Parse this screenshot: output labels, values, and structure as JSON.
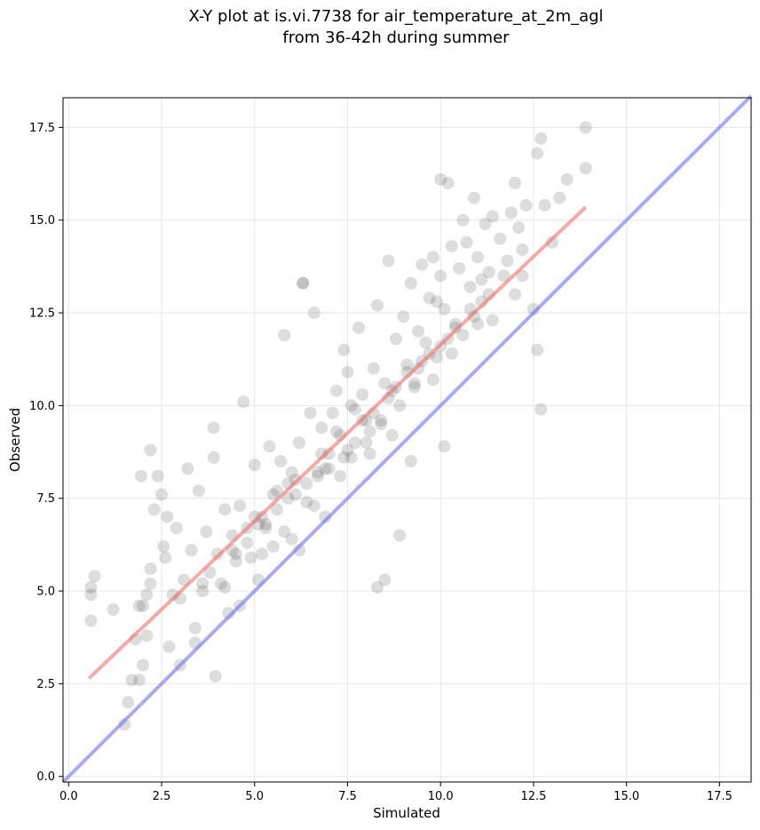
{
  "chart_data": {
    "type": "scatter",
    "title_line1": "X-Y plot at is.vi.7738 for air_temperature_at_2m_agl",
    "title_line2": "from 36-42h during summer",
    "xlabel": "Simulated",
    "ylabel": "Observed",
    "xlim": [
      -0.15,
      18.35
    ],
    "ylim": [
      -0.15,
      18.3
    ],
    "xticks": [
      "0.0",
      "2.5",
      "5.0",
      "7.5",
      "10.0",
      "12.5",
      "15.0",
      "17.5"
    ],
    "yticks": [
      "0.0",
      "2.5",
      "5.0",
      "7.5",
      "10.0",
      "12.5",
      "15.0",
      "17.5"
    ],
    "grid": true,
    "colors": {
      "points": "#555555",
      "fit_line": "#ef6f6f",
      "identity_line": "#6f6fef"
    },
    "fit_line": {
      "x": [
        0.55,
        13.9
      ],
      "y": [
        2.65,
        15.35
      ]
    },
    "identity_line": {
      "x": [
        -0.15,
        18.35
      ],
      "y": [
        -0.15,
        18.35
      ]
    },
    "points": {
      "x": [
        0.6,
        0.6,
        0.7,
        0.6,
        1.2,
        1.5,
        1.6,
        1.7,
        1.8,
        1.9,
        2.0,
        2.0,
        2.1,
        1.95,
        2.1,
        2.2,
        2.3,
        2.4,
        2.5,
        2.2,
        2.55,
        2.6,
        2.65,
        2.8,
        2.9,
        3.0,
        3.1,
        3.2,
        3.3,
        3.4,
        3.5,
        3.6,
        3.7,
        3.8,
        3.9,
        3.95,
        4.0,
        4.1,
        4.2,
        4.3,
        4.4,
        4.5,
        4.6,
        4.7,
        4.8,
        4.9,
        5.0,
        5.1,
        5.2,
        5.3,
        5.4,
        5.5,
        5.6,
        5.7,
        5.8,
        5.9,
        6.0,
        6.1,
        6.2,
        6.3,
        6.4,
        6.5,
        6.6,
        6.7,
        6.8,
        6.9,
        7.0,
        7.1,
        7.2,
        7.3,
        7.4,
        7.5,
        7.6,
        7.7,
        7.8,
        7.9,
        8.0,
        8.1,
        8.2,
        8.3,
        8.4,
        8.5,
        8.6,
        8.7,
        8.8,
        8.9,
        9.0,
        9.1,
        9.2,
        9.3,
        9.4,
        9.5,
        9.6,
        9.7,
        9.8,
        9.9,
        10.0,
        10.1,
        10.2,
        10.3,
        10.4,
        10.5,
        10.6,
        10.7,
        10.8,
        10.9,
        11.0,
        11.1,
        11.2,
        11.3,
        11.4,
        11.6,
        11.8,
        11.9,
        12.0,
        12.1,
        12.2,
        12.3,
        12.5,
        12.6,
        12.7,
        12.8,
        13.0,
        13.2,
        13.4,
        13.9,
        13.9,
        12.7,
        12.6,
        10.1,
        10.0,
        6.3,
        6.2,
        5.8,
        4.6,
        3.9,
        2.2,
        1.9,
        8.3,
        8.5,
        8.9,
        7.2,
        5.5,
        6.8,
        7.6,
        8.0,
        9.2,
        9.8,
        10.6,
        11.4,
        12.0,
        3.4,
        3.0,
        2.7,
        4.2,
        4.8,
        5.2,
        6.0,
        6.6,
        7.3,
        7.9,
        8.7,
        9.4,
        9.9,
        10.3,
        11.0,
        11.7,
        12.2,
        5.0,
        5.6,
        6.4,
        7.0,
        7.7,
        8.2,
        8.8,
        9.5,
        10.2,
        10.8,
        11.3,
        4.5,
        5.3,
        6.1,
        6.9,
        7.5,
        8.1,
        8.6,
        9.1,
        9.7,
        10.4,
        11.1,
        3.6,
        4.4,
        5.1,
        5.9,
        6.7,
        7.4,
        8.4,
        9.3,
        10.0,
        10.9
      ],
      "y": [
        4.2,
        5.1,
        5.4,
        4.9,
        4.5,
        1.4,
        2.0,
        2.6,
        3.7,
        2.6,
        3.0,
        4.6,
        3.8,
        8.1,
        4.9,
        5.2,
        7.2,
        8.1,
        7.6,
        8.8,
        6.2,
        5.9,
        7.0,
        4.9,
        6.7,
        3.0,
        5.3,
        8.3,
        6.1,
        4.0,
        7.7,
        5.0,
        6.6,
        5.5,
        9.4,
        2.7,
        6.0,
        5.2,
        7.2,
        4.4,
        6.5,
        5.8,
        7.3,
        10.1,
        6.7,
        5.9,
        8.4,
        5.3,
        7.0,
        6.8,
        8.9,
        6.2,
        7.7,
        8.5,
        6.6,
        7.9,
        6.4,
        8.0,
        9.0,
        13.3,
        7.4,
        9.8,
        12.5,
        8.2,
        9.4,
        7.0,
        8.7,
        9.8,
        10.4,
        8.1,
        11.5,
        10.9,
        8.6,
        9.9,
        12.1,
        10.3,
        9.0,
        8.7,
        11.0,
        12.7,
        9.6,
        10.6,
        13.9,
        9.2,
        11.8,
        10.0,
        12.4,
        11.1,
        13.3,
        10.5,
        12.0,
        13.8,
        11.7,
        12.9,
        14.0,
        11.3,
        13.5,
        12.6,
        16.0,
        14.3,
        12.2,
        13.7,
        15.0,
        14.4,
        13.2,
        15.6,
        14.0,
        12.8,
        14.9,
        13.6,
        15.1,
        14.5,
        13.9,
        15.2,
        16.0,
        14.8,
        13.5,
        15.4,
        12.6,
        16.8,
        17.2,
        15.4,
        14.4,
        15.6,
        16.1,
        17.5,
        16.4,
        9.9,
        11.5,
        8.9,
        16.1,
        13.3,
        6.1,
        11.9,
        4.6,
        8.6,
        5.6,
        4.6,
        5.1,
        5.3,
        6.5,
        9.3,
        7.6,
        8.7,
        10.0,
        9.6,
        8.5,
        10.7,
        11.9,
        12.3,
        13.0,
        3.6,
        4.8,
        3.5,
        5.1,
        6.3,
        6.0,
        8.2,
        7.3,
        9.2,
        9.6,
        10.4,
        11.0,
        12.8,
        11.4,
        12.2,
        13.5,
        14.2,
        7.0,
        7.2,
        7.9,
        8.3,
        9.0,
        9.8,
        10.5,
        11.2,
        11.8,
        12.6,
        13.0,
        6.0,
        6.7,
        7.6,
        8.3,
        8.8,
        9.3,
        10.2,
        10.9,
        11.4,
        12.1,
        13.4,
        5.2,
        6.1,
        6.8,
        7.5,
        8.1,
        8.6,
        9.5,
        10.6,
        11.6,
        12.4
      ]
    }
  }
}
